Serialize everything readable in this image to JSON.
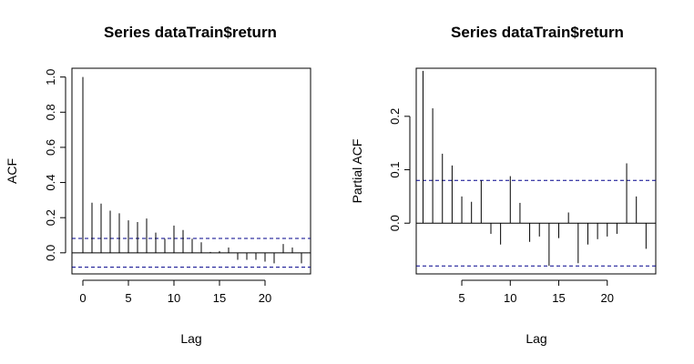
{
  "chart_data": [
    {
      "type": "bar",
      "title": "Series  dataTrain$return",
      "xlabel": "Lag",
      "ylabel": "ACF",
      "xlim": [
        -1.2,
        25
      ],
      "ylim": [
        -0.12,
        1.05
      ],
      "x_ticks": [
        0,
        5,
        10,
        15,
        20
      ],
      "y_ticks": [
        0.0,
        0.2,
        0.4,
        0.6,
        0.8,
        1.0
      ],
      "y_tick_labels": [
        "0.0",
        "0.2",
        "0.4",
        "0.6",
        "0.8",
        "1.0"
      ],
      "confidence_bound": 0.082,
      "confidence_line_color": "#00008b",
      "x": [
        0,
        1,
        2,
        3,
        4,
        5,
        6,
        7,
        8,
        9,
        10,
        11,
        12,
        13,
        14,
        15,
        16,
        17,
        18,
        19,
        20,
        21,
        22,
        23,
        24
      ],
      "values": [
        1.0,
        0.285,
        0.28,
        0.24,
        0.225,
        0.185,
        0.175,
        0.195,
        0.115,
        0.08,
        0.155,
        0.13,
        0.08,
        0.06,
        0.005,
        0.01,
        0.03,
        -0.04,
        -0.04,
        -0.04,
        -0.05,
        -0.06,
        0.05,
        0.03,
        -0.06
      ]
    },
    {
      "type": "bar",
      "title": "Series  dataTrain$return",
      "xlabel": "Lag",
      "ylabel": "Partial ACF",
      "xlim": [
        0.3,
        25
      ],
      "ylim": [
        -0.095,
        0.29
      ],
      "x_ticks": [
        5,
        10,
        15,
        20
      ],
      "y_ticks": [
        0.0,
        0.1,
        0.2
      ],
      "y_tick_labels": [
        "0.0",
        "0.1",
        "0.2"
      ],
      "confidence_bound": 0.08,
      "confidence_line_color": "#00008b",
      "x": [
        1,
        2,
        3,
        4,
        5,
        6,
        7,
        8,
        9,
        10,
        11,
        12,
        13,
        14,
        15,
        16,
        17,
        18,
        19,
        20,
        21,
        22,
        23,
        24
      ],
      "values": [
        0.285,
        0.215,
        0.13,
        0.108,
        0.05,
        0.04,
        0.08,
        -0.02,
        -0.04,
        0.088,
        0.038,
        -0.035,
        -0.025,
        -0.08,
        -0.028,
        0.02,
        -0.075,
        -0.04,
        -0.03,
        -0.025,
        -0.02,
        0.112,
        0.05,
        -0.048
      ]
    }
  ]
}
